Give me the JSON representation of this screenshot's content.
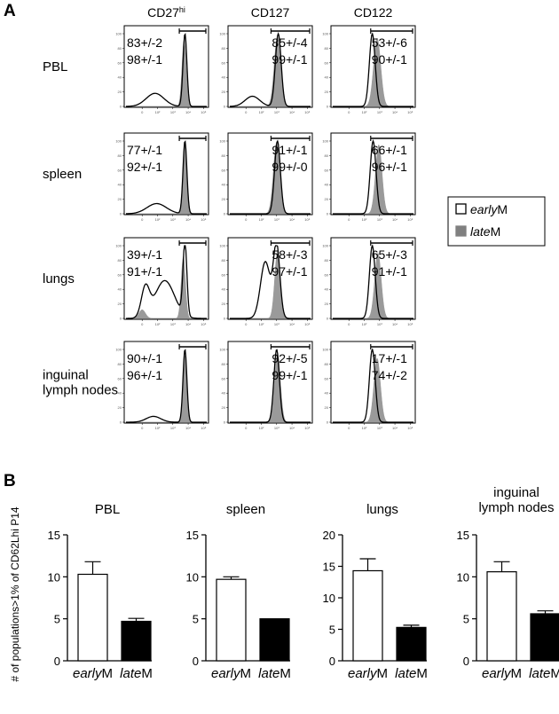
{
  "figure": {
    "panel_a": {
      "letter": "A",
      "columns": [
        {
          "label": "CD27",
          "sup": "hi"
        },
        {
          "label": "CD127",
          "sup": ""
        },
        {
          "label": "CD122",
          "sup": ""
        }
      ],
      "rows": [
        {
          "label_lines": [
            "PBL"
          ],
          "stats": [
            [
              "83+/-2",
              "98+/-1"
            ],
            [
              "85+/-4",
              "99+/-1"
            ],
            [
              "53+/-6",
              "90+/-1"
            ]
          ]
        },
        {
          "label_lines": [
            "spleen"
          ],
          "stats": [
            [
              "77+/-1",
              "92+/-1"
            ],
            [
              "91+/-1",
              "99+/-0"
            ],
            [
              "66+/-1",
              "96+/-1"
            ]
          ]
        },
        {
          "label_lines": [
            "lungs"
          ],
          "stats": [
            [
              "39+/-1",
              "91+/-1"
            ],
            [
              "58+/-3",
              "97+/-1"
            ],
            [
              "65+/-3",
              "91+/-1"
            ]
          ]
        },
        {
          "label_lines": [
            "inguinal",
            "lymph nodes"
          ],
          "stats": [
            [
              "90+/-1",
              "96+/-1"
            ],
            [
              "92+/-5",
              "99+/-1"
            ],
            [
              "17+/-1",
              "74+/-2"
            ]
          ]
        }
      ],
      "histogram_y_ticks": [
        "0",
        "20",
        "40",
        "60",
        "80",
        "100"
      ],
      "histogram_x_ticks": [
        "0",
        "10²",
        "10³",
        "10⁴",
        "10⁵"
      ],
      "legend": [
        {
          "italic": "early",
          "rest": "M",
          "fill": "#ffffff"
        },
        {
          "italic": "late",
          "rest": "M",
          "fill": "#808080"
        }
      ],
      "colors": {
        "late_fill": "#9a9a9a",
        "early_line": "#000000"
      }
    },
    "panel_b": {
      "letter": "B",
      "ylabel": "# of populations>1% of CD62Lhi P14",
      "chart_data": [
        {
          "type": "bar",
          "title": "PBL",
          "categories": [
            "earlyM",
            "lateM"
          ],
          "values": [
            10.3,
            4.7
          ],
          "errors": [
            1.5,
            0.35
          ],
          "ylim": [
            0,
            15
          ],
          "yticks": [
            "0",
            "5",
            "10",
            "15"
          ]
        },
        {
          "type": "bar",
          "title": "spleen",
          "categories": [
            "earlyM",
            "lateM"
          ],
          "values": [
            9.7,
            5.0
          ],
          "errors": [
            0.3,
            0.0
          ],
          "ylim": [
            0,
            15
          ],
          "yticks": [
            "0",
            "5",
            "10",
            "15"
          ]
        },
        {
          "type": "bar",
          "title": "lungs",
          "categories": [
            "earlyM",
            "lateM"
          ],
          "values": [
            14.3,
            5.3
          ],
          "errors": [
            1.9,
            0.35
          ],
          "ylim": [
            0,
            20
          ],
          "yticks": [
            "0",
            "5",
            "10",
            "15",
            "20"
          ]
        },
        {
          "type": "bar",
          "title": "inguinal lymph nodes",
          "title_lines": [
            "inguinal",
            "lymph nodes"
          ],
          "categories": [
            "earlyM",
            "lateM"
          ],
          "values": [
            10.6,
            5.6
          ],
          "errors": [
            1.2,
            0.35
          ],
          "ylim": [
            0,
            15
          ],
          "yticks": [
            "0",
            "5",
            "10",
            "15"
          ]
        }
      ],
      "category_labels": [
        {
          "italic": "early",
          "rest": "M"
        },
        {
          "italic": "late",
          "rest": "M"
        }
      ],
      "bar_fills": [
        "#ffffff",
        "#000000"
      ]
    }
  }
}
